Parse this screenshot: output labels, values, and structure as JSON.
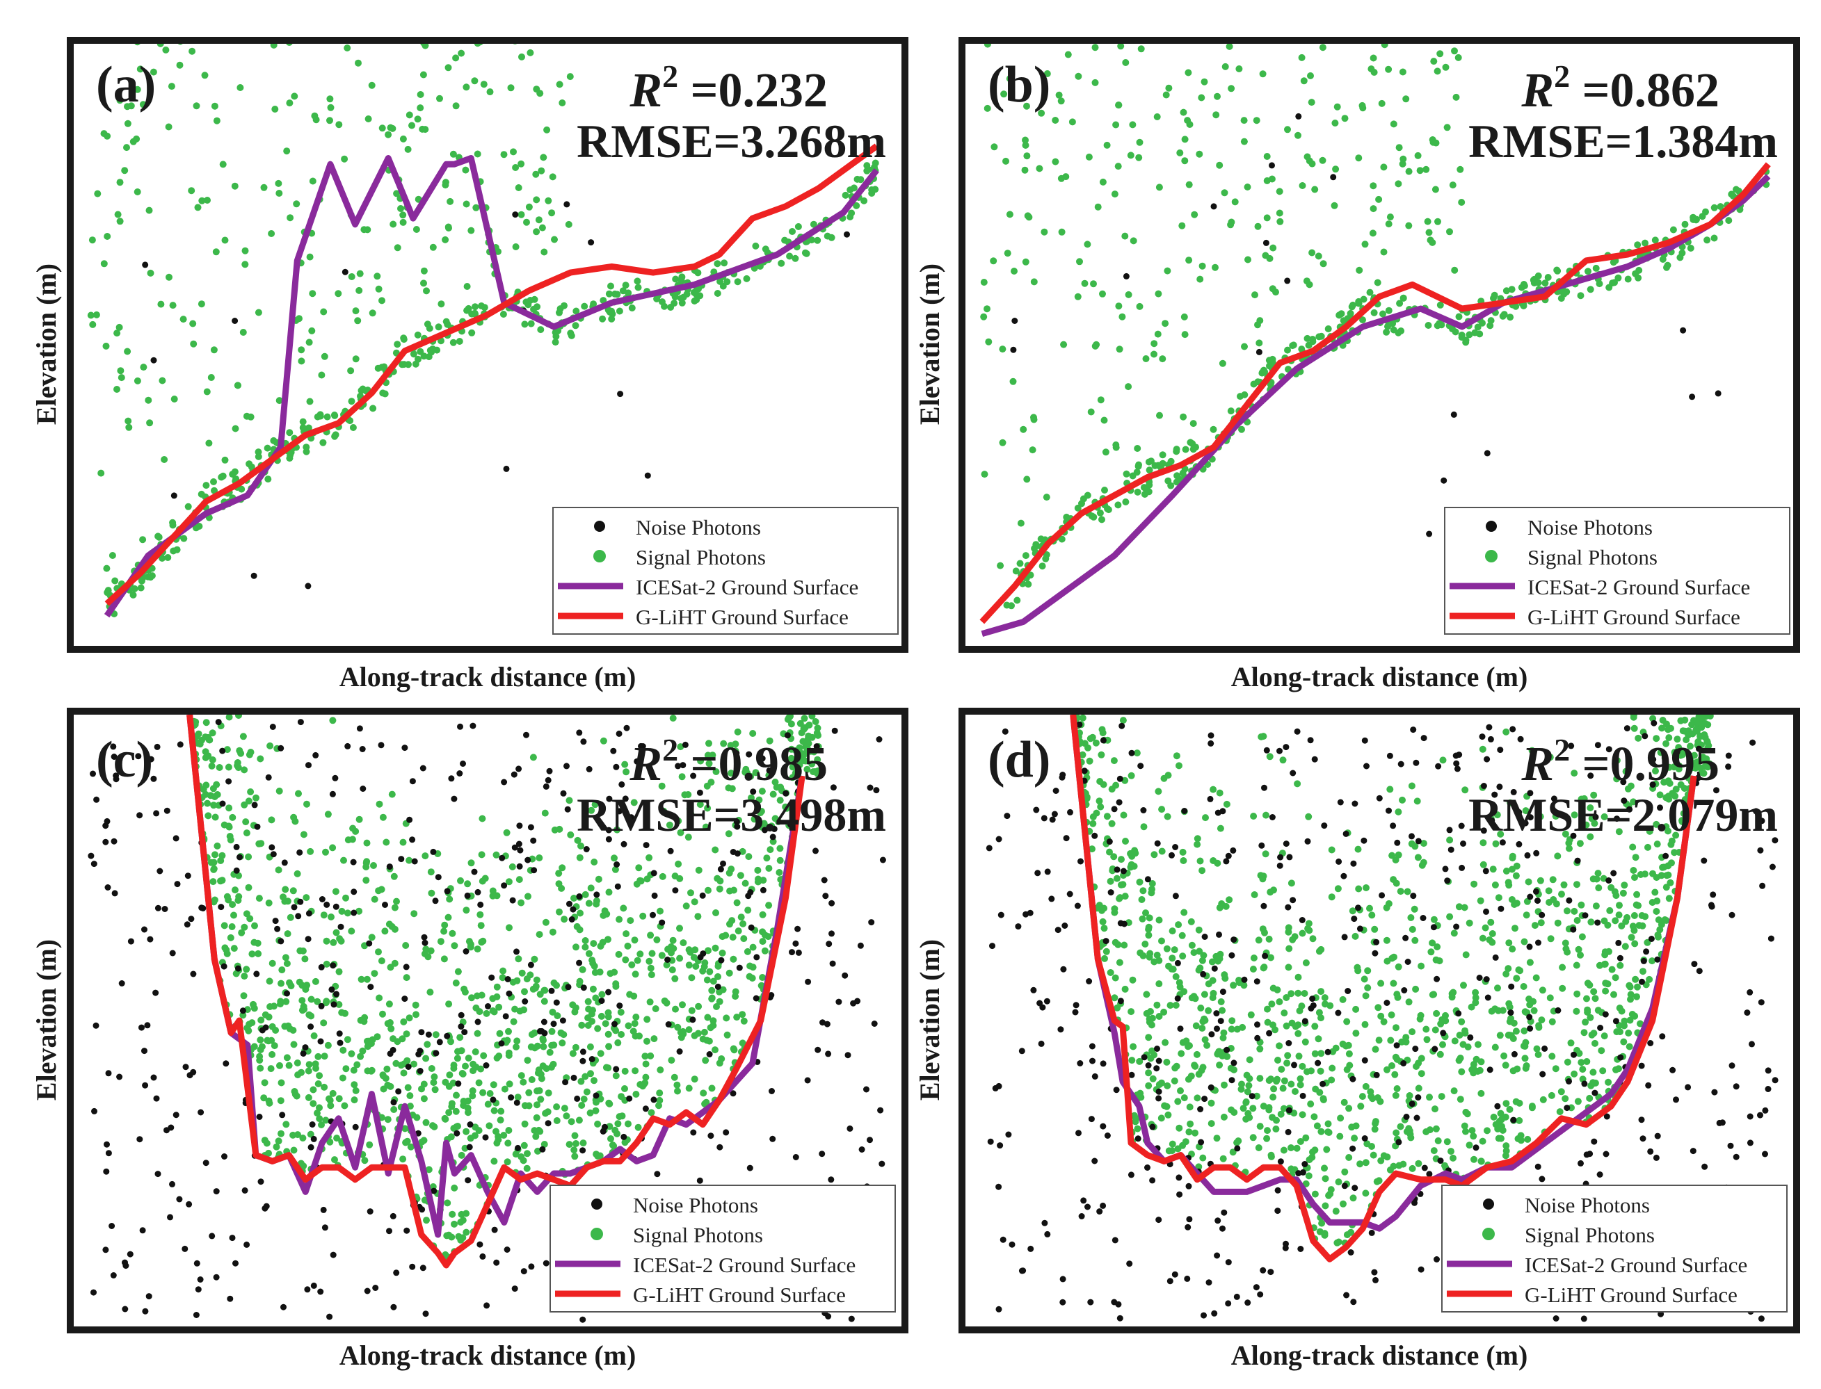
{
  "legend": {
    "noise_label": "Noise Photons",
    "signal_label": "Signal Photons",
    "icesat_label": "ICESat-2 Ground Surface",
    "gliht_label": "G-LiHT Ground Surface"
  },
  "colors": {
    "noise": "#111111",
    "signal": "#3cb84a",
    "icesat": "#8a2a9c",
    "gliht": "#ee2222",
    "frame": "#1a1a1a"
  },
  "axis": {
    "xlabel": "Along-track distance (m)",
    "ylabel": "Elevation (m)"
  },
  "chart_data": [
    {
      "type": "scatter",
      "panel": "(a)",
      "r2_symbol": "R",
      "r2_exp": "2",
      "r2_text": " =0.232",
      "rmse_text": "RMSE=3.268m",
      "xlabel": "Along-track distance (m)",
      "ylabel": "Elevation (m)",
      "xlim": [
        0,
        100
      ],
      "ylim": [
        0,
        100
      ],
      "legend_position": "bottom-right",
      "grid": false,
      "series": [
        {
          "name": "ICESat-2 Ground Surface",
          "kind": "line",
          "x": [
            4,
            9,
            16,
            21,
            25,
            27,
            31,
            34,
            38,
            41,
            45,
            46,
            48,
            52,
            58,
            65,
            75,
            85,
            93,
            97
          ],
          "y": [
            5,
            15,
            22,
            25,
            33,
            64,
            80,
            70,
            81,
            71,
            80,
            80,
            81,
            57,
            53,
            57,
            60,
            65,
            72,
            79
          ]
        },
        {
          "name": "G-LiHT Ground Surface",
          "kind": "line",
          "x": [
            4,
            8,
            12,
            16,
            20,
            24,
            28,
            32,
            36,
            40,
            45,
            50,
            55,
            60,
            65,
            70,
            75,
            78,
            82,
            86,
            90,
            94,
            97
          ],
          "y": [
            7,
            12,
            18,
            24,
            27,
            31,
            35,
            37,
            42,
            49,
            52,
            55,
            59,
            62,
            63,
            62,
            63,
            65,
            71,
            73,
            76,
            80,
            83
          ]
        },
        {
          "name": "Signal Photons",
          "kind": "scatter",
          "generator": "sparse"
        },
        {
          "name": "Noise Photons",
          "kind": "scatter",
          "generator": "sparse"
        }
      ]
    },
    {
      "type": "scatter",
      "panel": "(b)",
      "r2_symbol": "R",
      "r2_exp": "2",
      "r2_text": " =0.862",
      "rmse_text": "RMSE=1.384m",
      "xlabel": "Along-track distance (m)",
      "ylabel": "Elevation (m)",
      "xlim": [
        0,
        100
      ],
      "ylim": [
        0,
        100
      ],
      "legend_position": "bottom-right",
      "grid": false,
      "series": [
        {
          "name": "ICESat-2 Ground Surface",
          "kind": "line",
          "x": [
            2,
            7,
            12,
            18,
            25,
            33,
            40,
            48,
            55,
            60,
            65,
            70,
            75,
            80,
            85,
            90,
            94,
            97
          ],
          "y": [
            2,
            4,
            9,
            15,
            25,
            37,
            46,
            53,
            56,
            53,
            57,
            59,
            61,
            63,
            66,
            70,
            74,
            78
          ]
        },
        {
          "name": "G-LiHT Ground Surface",
          "kind": "line",
          "x": [
            2,
            6,
            10,
            14,
            18,
            22,
            26,
            30,
            34,
            38,
            42,
            46,
            50,
            54,
            60,
            65,
            70,
            75,
            80,
            85,
            90,
            94,
            97
          ],
          "y": [
            4,
            10,
            17,
            22,
            25,
            28,
            30,
            33,
            40,
            47,
            49,
            53,
            58,
            60,
            56,
            57,
            58,
            64,
            65,
            67,
            70,
            75,
            80
          ]
        },
        {
          "name": "Signal Photons",
          "kind": "scatter",
          "generator": "sparse"
        },
        {
          "name": "Noise Photons",
          "kind": "scatter",
          "generator": "sparse"
        }
      ]
    },
    {
      "type": "scatter",
      "panel": "(c)",
      "r2_symbol": "R",
      "r2_exp": "2",
      "r2_text": " =0.985",
      "rmse_text": "RMSE=3.498m",
      "xlabel": "Along-track distance (m)",
      "ylabel": "Elevation (m)",
      "xlim": [
        0,
        100
      ],
      "ylim": [
        0,
        100
      ],
      "legend_position": "bottom-right",
      "grid": false,
      "series": [
        {
          "name": "ICESat-2 Ground Surface",
          "kind": "line",
          "x": [
            14,
            17,
            19,
            21,
            22,
            24,
            26,
            28,
            30,
            32,
            34,
            36,
            38,
            40,
            42,
            44,
            45,
            46,
            48,
            50,
            52,
            54,
            56,
            58,
            60,
            62,
            64,
            66,
            68,
            70,
            72,
            74,
            76,
            78,
            80,
            82,
            85,
            88
          ],
          "y": [
            100,
            60,
            48,
            46,
            28,
            27,
            28,
            22,
            30,
            34,
            26,
            38,
            25,
            36,
            27,
            15,
            30,
            25,
            28,
            22,
            17,
            25,
            22,
            25,
            25,
            26,
            27,
            29,
            27,
            28,
            34,
            33,
            35,
            37,
            40,
            43,
            65,
            90
          ]
        },
        {
          "name": "G-LiHT Ground Surface",
          "kind": "line",
          "x": [
            14,
            17,
            19,
            20,
            22,
            24,
            26,
            28,
            30,
            32,
            34,
            36,
            38,
            40,
            42,
            44,
            45,
            46,
            48,
            50,
            52,
            54,
            56,
            58,
            60,
            62,
            64,
            66,
            68,
            70,
            72,
            74,
            76,
            78,
            80,
            83,
            86,
            88
          ],
          "y": [
            100,
            60,
            48,
            50,
            28,
            27,
            28,
            24,
            26,
            26,
            24,
            26,
            26,
            26,
            15,
            12,
            10,
            12,
            14,
            20,
            26,
            24,
            25,
            24,
            23,
            26,
            27,
            27,
            30,
            34,
            33,
            35,
            33,
            37,
            42,
            50,
            70,
            90
          ]
        },
        {
          "name": "Signal Photons",
          "kind": "scatter",
          "generator": "valley"
        },
        {
          "name": "Noise Photons",
          "kind": "scatter",
          "generator": "dense"
        }
      ]
    },
    {
      "type": "scatter",
      "panel": "(d)",
      "r2_symbol": "R",
      "r2_exp": "2",
      "r2_text": " =0.995",
      "rmse_text": "RMSE=2.079m",
      "xlabel": "Along-track distance (m)",
      "ylabel": "Elevation (m)",
      "xlim": [
        0,
        100
      ],
      "ylim": [
        0,
        100
      ],
      "legend_position": "bottom-right",
      "grid": false,
      "series": [
        {
          "name": "ICESat-2 Ground Surface",
          "kind": "line",
          "x": [
            13,
            16,
            18,
            19,
            20,
            21,
            22,
            24,
            26,
            28,
            30,
            32,
            34,
            36,
            38,
            40,
            42,
            44,
            46,
            48,
            50,
            52,
            55,
            58,
            60,
            63,
            66,
            69,
            72,
            75,
            78,
            80,
            83,
            86,
            88
          ],
          "y": [
            100,
            60,
            48,
            40,
            38,
            36,
            30,
            27,
            28,
            25,
            22,
            22,
            22,
            23,
            24,
            24,
            20,
            17,
            17,
            17,
            16,
            18,
            23,
            25,
            24,
            26,
            26,
            29,
            32,
            35,
            38,
            42,
            52,
            70,
            90
          ]
        },
        {
          "name": "G-LiHT Ground Surface",
          "kind": "line",
          "x": [
            13,
            16,
            18,
            19,
            20,
            22,
            24,
            26,
            28,
            30,
            32,
            34,
            36,
            38,
            40,
            42,
            44,
            46,
            48,
            50,
            52,
            55,
            58,
            60,
            63,
            66,
            69,
            72,
            75,
            78,
            80,
            83,
            86,
            88
          ],
          "y": [
            100,
            60,
            50,
            49,
            30,
            28,
            27,
            28,
            24,
            26,
            26,
            24,
            26,
            26,
            23,
            14,
            11,
            13,
            16,
            22,
            25,
            24,
            24,
            23,
            26,
            27,
            30,
            34,
            33,
            36,
            40,
            50,
            70,
            90
          ]
        },
        {
          "name": "Signal Photons",
          "kind": "scatter",
          "generator": "valley"
        },
        {
          "name": "Noise Photons",
          "kind": "scatter",
          "generator": "dense"
        }
      ]
    }
  ]
}
